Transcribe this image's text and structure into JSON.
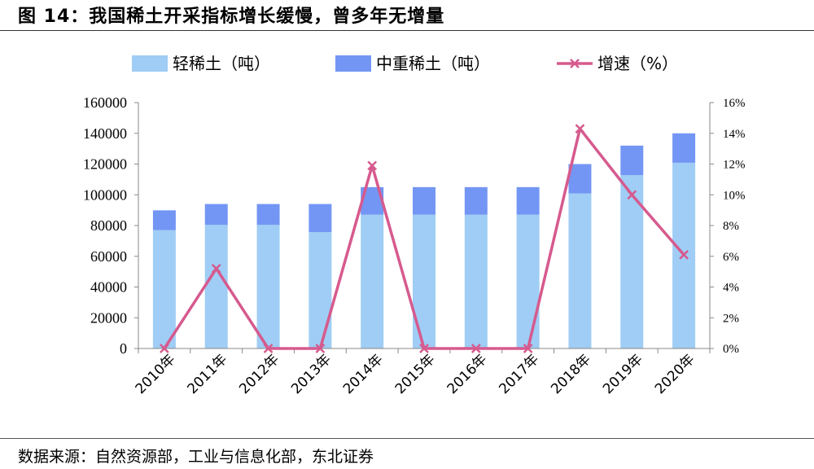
{
  "header": {
    "title": "图 14：我国稀土开采指标增长缓慢，曾多年无增量"
  },
  "footer": {
    "source": "数据来源：自然资源部，工业与信息化部，东北证券"
  },
  "colors": {
    "light": "#9fcdf5",
    "medium": "#7396f4",
    "growth": "#d65a8e"
  },
  "chart_data": {
    "type": "bar",
    "categories": [
      "2010年",
      "2011年",
      "2012年",
      "2013年",
      "2014年",
      "2015年",
      "2016年",
      "2017年",
      "2018年",
      "2019年",
      "2020年"
    ],
    "series": [
      {
        "name": "轻稀土（吨）",
        "kind": "stacked-bar",
        "axis": "left",
        "values": [
          77000,
          80400,
          80400,
          75700,
          87100,
          87100,
          87100,
          87100,
          100850,
          112850,
          120850
        ]
      },
      {
        "name": "中重稀土（吨）",
        "kind": "stacked-bar",
        "axis": "left",
        "values": [
          12900,
          13600,
          13600,
          18300,
          17900,
          17900,
          17900,
          17900,
          19150,
          19150,
          19150
        ]
      },
      {
        "name": "增速（%）",
        "kind": "line",
        "axis": "right",
        "values": [
          0,
          5.2,
          0,
          0,
          11.9,
          0,
          0,
          0,
          14.3,
          10,
          6.1
        ]
      }
    ],
    "yticks": [
      "0",
      "20000",
      "40000",
      "60000",
      "80000",
      "100000",
      "120000",
      "140000",
      "160000"
    ],
    "ylim": [
      0,
      160000
    ],
    "y2ticks": [
      "0%",
      "2%",
      "4%",
      "6%",
      "8%",
      "10%",
      "12%",
      "14%",
      "16%"
    ],
    "y2lim": [
      0,
      16
    ],
    "legend": "top",
    "grid": false
  }
}
